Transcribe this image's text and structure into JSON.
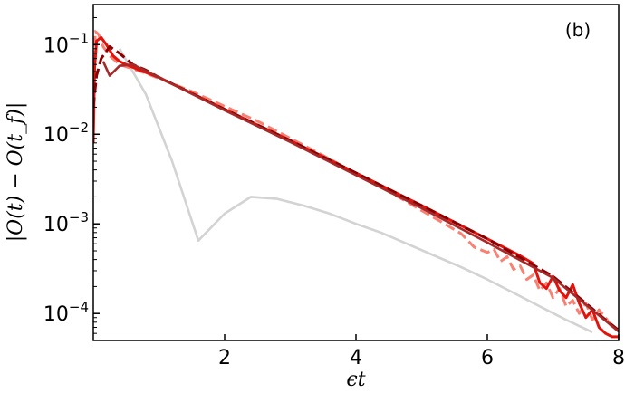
{
  "chart_data": {
    "type": "line",
    "title": "",
    "panel_label": "(b)",
    "xlabel": "ϵt",
    "ylabel": "|O(t) − O(t_f)|",
    "xscale": "linear",
    "yscale": "log",
    "xlim": [
      0,
      8
    ],
    "ylim": [
      5e-05,
      0.28
    ],
    "grid": false,
    "legend": "none",
    "x_ticks": [
      {
        "value": 2,
        "label": "2"
      },
      {
        "value": 4,
        "label": "4"
      },
      {
        "value": 6,
        "label": "6"
      },
      {
        "value": 8,
        "label": "8"
      }
    ],
    "y_ticks": [
      {
        "value": 0.0001,
        "mantissa": "10",
        "exponent": "−4"
      },
      {
        "value": 0.001,
        "mantissa": "10",
        "exponent": "−3"
      },
      {
        "value": 0.01,
        "mantissa": "10",
        "exponent": "−2"
      },
      {
        "value": 0.1,
        "mantissa": "10",
        "exponent": "−1"
      }
    ],
    "series": [
      {
        "color": "#d3d3d3",
        "style": "solid",
        "width": 2.6,
        "points": [
          [
            0.4,
            0.09
          ],
          [
            0.8,
            0.028
          ],
          [
            1.2,
            0.005
          ],
          [
            1.6,
            0.00065
          ],
          [
            2.0,
            0.0013
          ],
          [
            2.4,
            0.002
          ],
          [
            2.8,
            0.0019
          ],
          [
            3.2,
            0.0016
          ],
          [
            3.6,
            0.0013
          ],
          [
            4.0,
            0.001
          ],
          [
            4.4,
            0.00079
          ],
          [
            4.8,
            0.00059
          ],
          [
            5.2,
            0.00044
          ],
          [
            5.6,
            0.00033
          ],
          [
            6.0,
            0.00024
          ],
          [
            6.4,
            0.00017
          ],
          [
            6.8,
            0.00012
          ],
          [
            7.2,
            8.5e-05
          ],
          [
            7.6,
            6.2e-05
          ]
        ]
      },
      {
        "color": "#fa8072",
        "style": "dashed",
        "width": 3,
        "points": [
          [
            0.0,
            0.015
          ],
          [
            0.03,
            0.14
          ],
          [
            0.08,
            0.13
          ],
          [
            0.15,
            0.095
          ],
          [
            0.25,
            0.075
          ],
          [
            0.4,
            0.06
          ],
          [
            0.8,
            0.048
          ],
          [
            1.5,
            0.03
          ],
          [
            2.5,
            0.014
          ],
          [
            3.5,
            0.0058
          ],
          [
            4.5,
            0.0023
          ],
          [
            5.3,
            0.00105
          ],
          [
            5.6,
            0.00078
          ],
          [
            5.8,
            0.00055
          ],
          [
            6.0,
            0.00048
          ],
          [
            6.1,
            0.00052
          ],
          [
            6.2,
            0.00038
          ],
          [
            6.3,
            0.00043
          ],
          [
            6.4,
            0.00031
          ],
          [
            6.5,
            0.00034
          ],
          [
            6.6,
            0.00024
          ],
          [
            6.7,
            0.00027
          ],
          [
            6.8,
            0.00018
          ],
          [
            6.9,
            0.00022
          ],
          [
            7.0,
            0.00015
          ],
          [
            7.1,
            0.00019
          ],
          [
            7.2,
            0.00012
          ],
          [
            7.3,
            0.00014
          ],
          [
            7.4,
            0.0001
          ],
          [
            7.5,
            0.00013
          ],
          [
            7.6,
            8.5e-05
          ],
          [
            7.7,
            0.00011
          ],
          [
            7.8,
            9e-05
          ],
          [
            7.9,
            7e-05
          ],
          [
            8.0,
            6.5e-05
          ]
        ]
      },
      {
        "color": "#e3120b",
        "style": "solid",
        "width": 3,
        "points": [
          [
            0.0,
            0.008
          ],
          [
            0.02,
            0.055
          ],
          [
            0.05,
            0.11
          ],
          [
            0.12,
            0.12
          ],
          [
            0.2,
            0.1
          ],
          [
            0.3,
            0.075
          ],
          [
            0.4,
            0.065
          ],
          [
            0.5,
            0.06
          ],
          [
            0.7,
            0.052
          ],
          [
            1.0,
            0.043
          ],
          [
            2.0,
            0.019
          ],
          [
            3.0,
            0.0085
          ],
          [
            4.0,
            0.0037
          ],
          [
            5.0,
            0.0016
          ],
          [
            6.0,
            0.00068
          ],
          [
            6.5,
            0.00044
          ],
          [
            6.7,
            0.00036
          ],
          [
            6.8,
            0.00022
          ],
          [
            6.9,
            0.00019
          ],
          [
            7.0,
            0.00026
          ],
          [
            7.1,
            0.00018
          ],
          [
            7.2,
            0.00015
          ],
          [
            7.3,
            0.00021
          ],
          [
            7.4,
            0.00013
          ],
          [
            7.5,
            9e-05
          ],
          [
            7.6,
            0.00011
          ],
          [
            7.7,
            7e-05
          ],
          [
            7.8,
            6e-05
          ],
          [
            7.9,
            5.5e-05
          ],
          [
            8.0,
            5.5e-05
          ]
        ]
      },
      {
        "color": "#8b0000",
        "style": "dashed",
        "width": 3,
        "points": [
          [
            0.0,
            0.02
          ],
          [
            0.05,
            0.045
          ],
          [
            0.12,
            0.07
          ],
          [
            0.25,
            0.095
          ],
          [
            0.4,
            0.08
          ],
          [
            0.6,
            0.06
          ],
          [
            0.8,
            0.052
          ],
          [
            1.0,
            0.043
          ],
          [
            2.0,
            0.019
          ],
          [
            3.0,
            0.0085
          ],
          [
            4.0,
            0.0037
          ],
          [
            5.0,
            0.0016
          ],
          [
            6.0,
            0.00068
          ],
          [
            7.0,
            0.00026
          ],
          [
            7.5,
            0.00013
          ],
          [
            7.8,
            8.5e-05
          ],
          [
            8.0,
            6.5e-05
          ]
        ]
      },
      {
        "color": "#a52a2a",
        "style": "solid",
        "width": 2.6,
        "points": [
          [
            0.15,
            0.065
          ],
          [
            0.25,
            0.045
          ],
          [
            0.4,
            0.058
          ],
          [
            0.6,
            0.06
          ],
          [
            1.0,
            0.043
          ],
          [
            2.0,
            0.0185
          ],
          [
            3.0,
            0.0082
          ],
          [
            4.0,
            0.0035
          ],
          [
            5.0,
            0.0015
          ],
          [
            6.0,
            0.00062
          ],
          [
            7.0,
            0.00025
          ],
          [
            8.0,
            6.3e-05
          ]
        ]
      }
    ]
  }
}
